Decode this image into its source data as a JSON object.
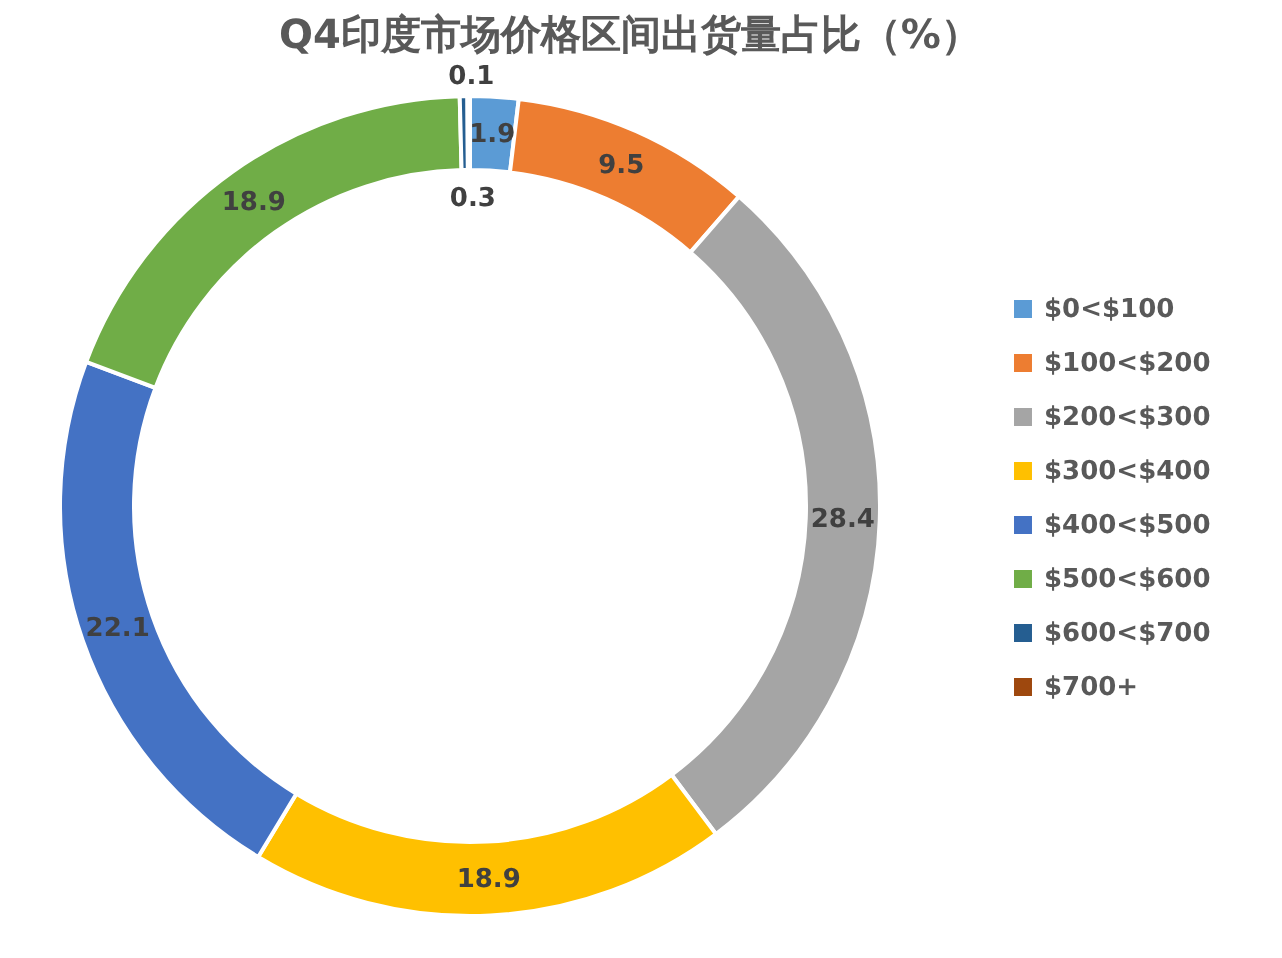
{
  "chart_data": {
    "type": "donut",
    "title": "Q4印度市场价格区间出货量占比（%）",
    "categories": [
      "$0<$100",
      "$100<$200",
      "$200<$300",
      "$300<$400",
      "$400<$500",
      "$500<$600",
      "$600<$700",
      "$700+"
    ],
    "values": [
      1.9,
      9.5,
      28.4,
      18.9,
      22.1,
      18.9,
      0.3,
      0.1
    ],
    "colors": [
      "#5b9bd5",
      "#ed7d31",
      "#a5a5a5",
      "#ffc000",
      "#4472c4",
      "#70ad47",
      "#255e91",
      "#9e480e"
    ],
    "data_labels": true,
    "legend": "right"
  }
}
